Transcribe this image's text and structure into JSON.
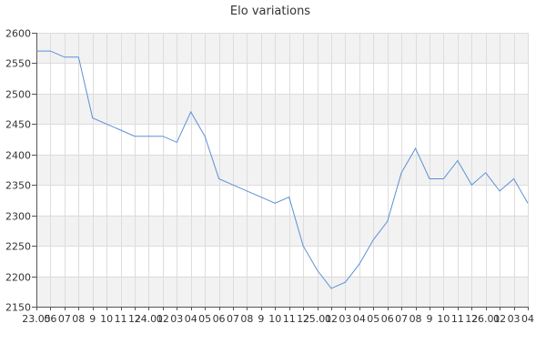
{
  "chart_data": {
    "type": "line",
    "title": "Elo variations",
    "xlabel": "",
    "ylabel": "",
    "ylim": [
      2150,
      2600
    ],
    "yticks": [
      2150,
      2200,
      2250,
      2300,
      2350,
      2400,
      2450,
      2500,
      2550,
      2600
    ],
    "grid": true,
    "band_color": "#f2f2f2",
    "grid_color": "#dddddd",
    "line_color": "#5b8fd9",
    "categories": [
      "23.05",
      "06",
      "07",
      "08",
      "09",
      "10",
      "11",
      "12",
      "24.01",
      "02",
      "03",
      "04",
      "05",
      "06",
      "07",
      "08",
      "09",
      "10",
      "11",
      "12",
      "25.01",
      "02",
      "03",
      "04",
      "05",
      "06",
      "07",
      "08",
      "09",
      "10",
      "11",
      "12",
      "26.01",
      "02",
      "03",
      "04"
    ],
    "category_labels": [
      "23.05",
      "06",
      "07",
      "08",
      "9",
      "10",
      "11",
      "12",
      "24.01",
      "02",
      "03",
      "04",
      "05",
      "06",
      "07",
      "08",
      "9",
      "10",
      "11",
      "12",
      "25.01",
      "02",
      "03",
      "04",
      "05",
      "06",
      "07",
      "08",
      "9",
      "10",
      "11",
      "12",
      "26.01",
      "02",
      "03",
      "04"
    ],
    "series": [
      {
        "values": [
          2570,
          2570,
          2560,
          2560,
          2460,
          2450,
          2440,
          2430,
          2430,
          2430,
          2420,
          2470,
          2430,
          2360,
          2350,
          2340,
          2330,
          2320,
          2330,
          2250,
          2210,
          2180,
          2190,
          2220,
          2260,
          2290,
          2370,
          2410,
          2360,
          2360,
          2390,
          2350,
          2370,
          2340,
          2360,
          2320
        ]
      }
    ]
  }
}
